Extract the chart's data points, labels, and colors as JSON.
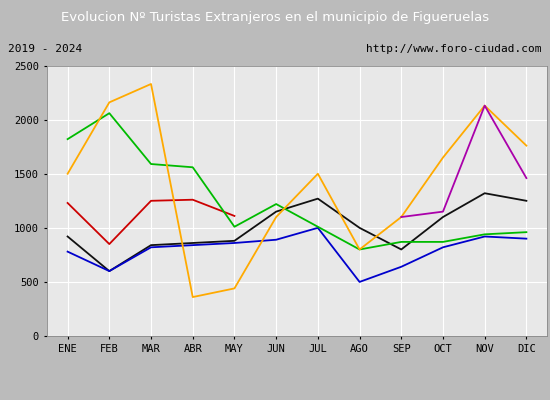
{
  "title": "Evolucion Nº Turistas Extranjeros en el municipio de Figueruelas",
  "subtitle_left": "2019 - 2024",
  "subtitle_right": "http://www.foro-ciudad.com",
  "months": [
    "ENE",
    "FEB",
    "MAR",
    "ABR",
    "MAY",
    "JUN",
    "JUL",
    "AGO",
    "SEP",
    "OCT",
    "NOV",
    "DIC"
  ],
  "series_2024": [
    1230,
    850,
    1250,
    1260,
    1110,
    null,
    null,
    null,
    null,
    null,
    null,
    null
  ],
  "series_2023": [
    920,
    600,
    840,
    860,
    880,
    1150,
    1270,
    1000,
    800,
    1100,
    1320,
    1250
  ],
  "series_2022": [
    780,
    600,
    820,
    840,
    860,
    890,
    1000,
    500,
    640,
    820,
    920,
    900
  ],
  "series_2021": [
    1820,
    2060,
    1590,
    1560,
    1010,
    1220,
    1010,
    800,
    870,
    870,
    940,
    960
  ],
  "series_2020": [
    1500,
    2160,
    2330,
    360,
    440,
    1100,
    1500,
    800,
    1100,
    1650,
    2130,
    1760
  ],
  "series_2019": [
    null,
    null,
    null,
    null,
    null,
    null,
    null,
    null,
    1100,
    1150,
    2130,
    1460
  ],
  "colors": {
    "2024": "#cc0000",
    "2023": "#111111",
    "2022": "#0000cc",
    "2021": "#00bb00",
    "2020": "#ffaa00",
    "2019": "#aa00aa"
  },
  "ylim": [
    0,
    2500
  ],
  "yticks": [
    0,
    500,
    1000,
    1500,
    2000,
    2500
  ],
  "title_bg": "#3a7abf",
  "title_color": "white",
  "subtitle_bg": "#e8e8e8",
  "plot_bg": "#e8e8e8",
  "outer_bg": "#bbbbbb",
  "grid_color": "white",
  "title_fontsize": 9.5,
  "subtitle_fontsize": 8,
  "tick_fontsize": 7.5
}
